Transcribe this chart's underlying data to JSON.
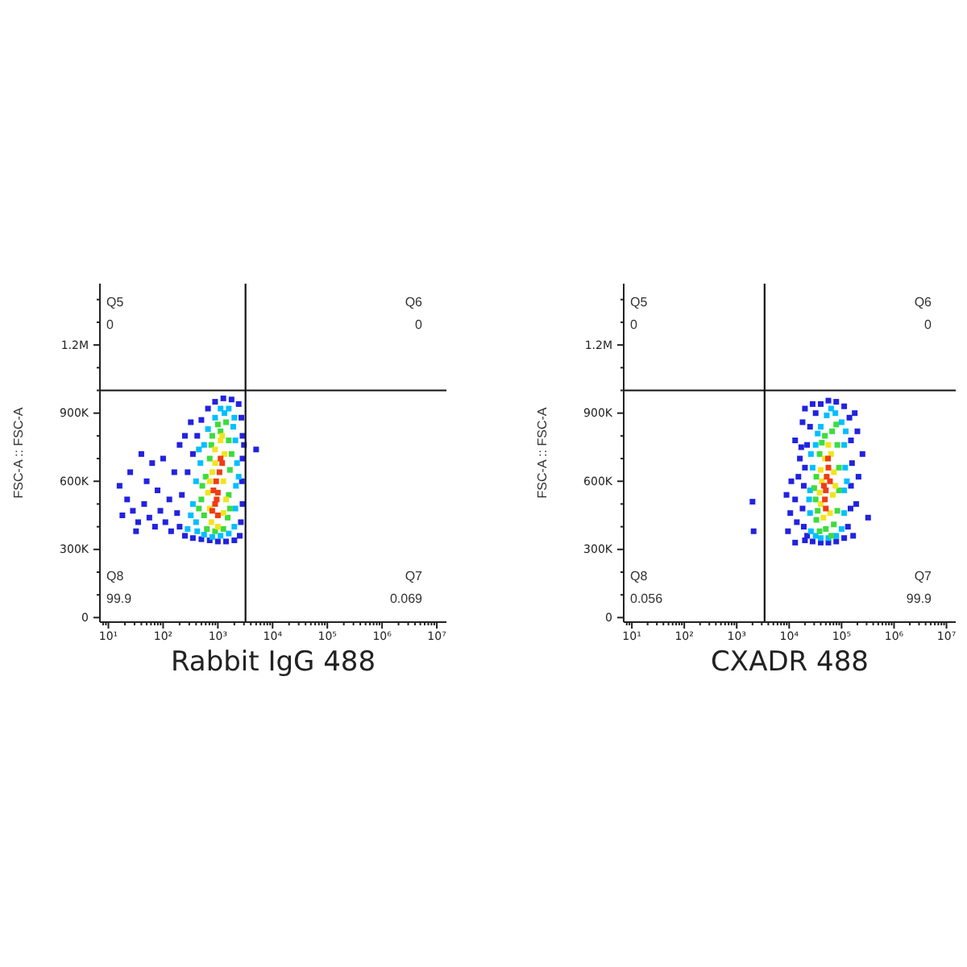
{
  "chart_data": [
    {
      "type": "scatter",
      "xlabel": "Rabbit IgG 488",
      "ylabel": "FSC-A :: FSC-A",
      "log": "x",
      "marker": "square",
      "xlim": [
        7,
        15000000
      ],
      "ylim": [
        -20000,
        1470000
      ],
      "xticks": [
        {
          "value": 8,
          "label": null
        },
        {
          "value": 9,
          "label": null
        },
        {
          "value": 10,
          "label": "10¹"
        },
        {
          "value": 20,
          "label": null
        },
        {
          "value": 30,
          "label": null
        },
        {
          "value": 40,
          "label": null
        },
        {
          "value": 50,
          "label": null
        },
        {
          "value": 60,
          "label": null
        },
        {
          "value": 70,
          "label": null
        },
        {
          "value": 80,
          "label": null
        },
        {
          "value": 90,
          "label": null
        },
        {
          "value": 100,
          "label": "10²"
        },
        {
          "value": 200,
          "label": null
        },
        {
          "value": 300,
          "label": null
        },
        {
          "value": 400,
          "label": null
        },
        {
          "value": 500,
          "label": null
        },
        {
          "value": 600,
          "label": null
        },
        {
          "value": 700,
          "label": null
        },
        {
          "value": 800,
          "label": null
        },
        {
          "value": 900,
          "label": null
        },
        {
          "value": 1000,
          "label": "10³"
        },
        {
          "value": 2000,
          "label": null
        },
        {
          "value": 3000,
          "label": null
        },
        {
          "value": 4000,
          "label": null
        },
        {
          "value": 5000,
          "label": null
        },
        {
          "value": 6000,
          "label": null
        },
        {
          "value": 7000,
          "label": null
        },
        {
          "value": 8000,
          "label": null
        },
        {
          "value": 9000,
          "label": null
        },
        {
          "value": 10000,
          "label": "10⁴"
        },
        {
          "value": 20000,
          "label": null
        },
        {
          "value": 30000,
          "label": null
        },
        {
          "value": 40000,
          "label": null
        },
        {
          "value": 50000,
          "label": null
        },
        {
          "value": 60000,
          "label": null
        },
        {
          "value": 70000,
          "label": null
        },
        {
          "value": 80000,
          "label": null
        },
        {
          "value": 90000,
          "label": null
        },
        {
          "value": 100000,
          "label": "10⁵"
        },
        {
          "value": 200000,
          "label": null
        },
        {
          "value": 300000,
          "label": null
        },
        {
          "value": 400000,
          "label": null
        },
        {
          "value": 500000,
          "label": null
        },
        {
          "value": 600000,
          "label": null
        },
        {
          "value": 700000,
          "label": null
        },
        {
          "value": 800000,
          "label": null
        },
        {
          "value": 900000,
          "label": null
        },
        {
          "value": 1000000,
          "label": "10⁶"
        },
        {
          "value": 2000000,
          "label": null
        },
        {
          "value": 3000000,
          "label": null
        },
        {
          "value": 4000000,
          "label": null
        },
        {
          "value": 5000000,
          "label": null
        },
        {
          "value": 6000000,
          "label": null
        },
        {
          "value": 7000000,
          "label": null
        },
        {
          "value": 8000000,
          "label": null
        },
        {
          "value": 9000000,
          "label": null
        },
        {
          "value": 10000000,
          "label": "10⁷"
        }
      ],
      "yticks": [
        {
          "value": 0,
          "label": "0"
        },
        {
          "value": 100000,
          "label": null
        },
        {
          "value": 200000,
          "label": null
        },
        {
          "value": 300000,
          "label": "300K"
        },
        {
          "value": 400000,
          "label": null
        },
        {
          "value": 500000,
          "label": null
        },
        {
          "value": 600000,
          "label": "600K"
        },
        {
          "value": 700000,
          "label": null
        },
        {
          "value": 800000,
          "label": null
        },
        {
          "value": 900000,
          "label": "900K"
        },
        {
          "value": 1000000,
          "label": null
        },
        {
          "value": 1100000,
          "label": null
        },
        {
          "value": 1200000,
          "label": "1.2M"
        },
        {
          "value": 1300000,
          "label": null
        },
        {
          "value": 1400000,
          "label": null
        }
      ],
      "series": [
        {
          "color": "#2222e0",
          "x": [
            250,
            200,
            180,
            220,
            280,
            350,
            420,
            500,
            660,
            890,
            1260,
            1780,
            2400,
            2690,
            2820,
            2820,
            2750,
            2820,
            2630,
            2510,
            2000,
            1410,
            1000,
            710,
            500,
            350,
            140,
            110,
            130,
            89,
            71,
            56,
            79,
            45,
            35,
            28,
            50,
            22,
            160,
            100,
            63,
            200,
            40,
            320,
            32,
            18,
            16,
            250,
            25,
            3000,
            5000
          ],
          "values": [
            360000,
            400000,
            460000,
            540000,
            640000,
            720000,
            800000,
            870000,
            920000,
            950000,
            965000,
            960000,
            940000,
            880000,
            800000,
            700000,
            600000,
            500000,
            420000,
            360000,
            340000,
            335000,
            335000,
            340000,
            345000,
            350000,
            380000,
            420000,
            520000,
            470000,
            400000,
            440000,
            560000,
            500000,
            420000,
            470000,
            600000,
            520000,
            640000,
            700000,
            680000,
            760000,
            720000,
            860000,
            380000,
            450000,
            580000,
            800000,
            640000,
            760000,
            740000
          ]
        },
        {
          "color": "#00bfff",
          "x": [
            400,
            350,
            400,
            480,
            560,
            660,
            890,
            1120,
            1580,
            2000,
            2090,
            2240,
            2140,
            2090,
            2000,
            1580,
            1120,
            790,
            560,
            420,
            320,
            450,
            1320,
            2400,
            1910,
            280
          ],
          "values": [
            420000,
            500000,
            600000,
            680000,
            760000,
            830000,
            880000,
            920000,
            920000,
            880000,
            780000,
            680000,
            580000,
            480000,
            400000,
            370000,
            360000,
            355000,
            365000,
            380000,
            450000,
            740000,
            900000,
            620000,
            840000,
            390000
          ]
        },
        {
          "color": "#3ddc3d",
          "x": [
            560,
            500,
            600,
            710,
            790,
            1000,
            1410,
            1580,
            1660,
            1580,
            1510,
            1260,
            890,
            630,
            520,
            760,
            1120,
            1780,
            1660,
            450
          ],
          "values": [
            450000,
            520000,
            620000,
            700000,
            800000,
            850000,
            860000,
            780000,
            650000,
            540000,
            440000,
            390000,
            380000,
            390000,
            580000,
            760000,
            820000,
            720000,
            480000,
            480000
          ]
        },
        {
          "color": "#f2e41e",
          "x": [
            710,
            760,
            1260,
            1320,
            890,
            1120,
            660,
            790,
            1410,
            1000,
            710,
            1260,
            890,
            1200
          ],
          "values": [
            480000,
            420000,
            600000,
            720000,
            740000,
            780000,
            550000,
            640000,
            520000,
            400000,
            600000,
            460000,
            680000,
            800000
          ]
        },
        {
          "color": "#f03c14",
          "x": [
            890,
            1000,
            930,
            1070,
            830,
            1120,
            790,
            1000,
            1200,
            950
          ],
          "values": [
            500000,
            550000,
            600000,
            640000,
            560000,
            700000,
            470000,
            450000,
            680000,
            520000
          ]
        }
      ],
      "ref_lines": [
        {
          "axis": "x",
          "value": 3200
        },
        {
          "axis": "y",
          "value": 1000000
        }
      ],
      "annotations": [
        "Q5",
        "0",
        "Q6",
        "0",
        "Q7",
        "0.069",
        "Q8",
        "99.9"
      ]
    },
    {
      "type": "scatter",
      "xlabel": "CXADR 488",
      "ylabel": "FSC-A :: FSC-A",
      "log": "x",
      "marker": "square",
      "xlim": [
        7,
        15000000
      ],
      "ylim": [
        -20000,
        1470000
      ],
      "xticks": [
        {
          "value": 8,
          "label": null
        },
        {
          "value": 9,
          "label": null
        },
        {
          "value": 10,
          "label": "10¹"
        },
        {
          "value": 20,
          "label": null
        },
        {
          "value": 30,
          "label": null
        },
        {
          "value": 40,
          "label": null
        },
        {
          "value": 50,
          "label": null
        },
        {
          "value": 60,
          "label": null
        },
        {
          "value": 70,
          "label": null
        },
        {
          "value": 80,
          "label": null
        },
        {
          "value": 90,
          "label": null
        },
        {
          "value": 100,
          "label": "10²"
        },
        {
          "value": 200,
          "label": null
        },
        {
          "value": 300,
          "label": null
        },
        {
          "value": 400,
          "label": null
        },
        {
          "value": 500,
          "label": null
        },
        {
          "value": 600,
          "label": null
        },
        {
          "value": 700,
          "label": null
        },
        {
          "value": 800,
          "label": null
        },
        {
          "value": 900,
          "label": null
        },
        {
          "value": 1000,
          "label": "10³"
        },
        {
          "value": 2000,
          "label": null
        },
        {
          "value": 3000,
          "label": null
        },
        {
          "value": 4000,
          "label": null
        },
        {
          "value": 5000,
          "label": null
        },
        {
          "value": 6000,
          "label": null
        },
        {
          "value": 7000,
          "label": null
        },
        {
          "value": 8000,
          "label": null
        },
        {
          "value": 9000,
          "label": null
        },
        {
          "value": 10000,
          "label": "10⁴"
        },
        {
          "value": 20000,
          "label": null
        },
        {
          "value": 30000,
          "label": null
        },
        {
          "value": 40000,
          "label": null
        },
        {
          "value": 50000,
          "label": null
        },
        {
          "value": 60000,
          "label": null
        },
        {
          "value": 70000,
          "label": null
        },
        {
          "value": 80000,
          "label": null
        },
        {
          "value": 90000,
          "label": null
        },
        {
          "value": 100000,
          "label": "10⁵"
        },
        {
          "value": 200000,
          "label": null
        },
        {
          "value": 300000,
          "label": null
        },
        {
          "value": 400000,
          "label": null
        },
        {
          "value": 500000,
          "label": null
        },
        {
          "value": 600000,
          "label": null
        },
        {
          "value": 700000,
          "label": null
        },
        {
          "value": 800000,
          "label": null
        },
        {
          "value": 900000,
          "label": null
        },
        {
          "value": 1000000,
          "label": "10⁶"
        },
        {
          "value": 2000000,
          "label": null
        },
        {
          "value": 3000000,
          "label": null
        },
        {
          "value": 4000000,
          "label": null
        },
        {
          "value": 5000000,
          "label": null
        },
        {
          "value": 6000000,
          "label": null
        },
        {
          "value": 7000000,
          "label": null
        },
        {
          "value": 8000000,
          "label": null
        },
        {
          "value": 9000000,
          "label": null
        },
        {
          "value": 10000000,
          "label": "10⁷"
        }
      ],
      "yticks": [
        {
          "value": 0,
          "label": "0"
        },
        {
          "value": 100000,
          "label": null
        },
        {
          "value": 200000,
          "label": null
        },
        {
          "value": 300000,
          "label": "300K"
        },
        {
          "value": 400000,
          "label": null
        },
        {
          "value": 500000,
          "label": null
        },
        {
          "value": 600000,
          "label": "600K"
        },
        {
          "value": 700000,
          "label": null
        },
        {
          "value": 800000,
          "label": null
        },
        {
          "value": 900000,
          "label": "900K"
        },
        {
          "value": 1000000,
          "label": null
        },
        {
          "value": 1100000,
          "label": null
        },
        {
          "value": 1200000,
          "label": "1.2M"
        },
        {
          "value": 1300000,
          "label": null
        },
        {
          "value": 1400000,
          "label": null
        }
      ],
      "series": [
        {
          "color": "#2222e0",
          "x": [
            20000,
            19000,
            18000,
            19000,
            20000,
            22000,
            25000,
            32000,
            40000,
            56000,
            79000,
            112000,
            141000,
            151000,
            158000,
            151000,
            148000,
            132000,
            112000,
            79000,
            56000,
            40000,
            28000,
            22000,
            14000,
            13000,
            15000,
            16000,
            13000,
            11000,
            10500,
            9500,
            200000,
            210000,
            190000,
            320000,
            18000,
            28000,
            178000,
            13000,
            250000,
            17000,
            166000,
            8900,
            20000,
            2000,
            2100
          ],
          "values": [
            340000,
            400000,
            480000,
            580000,
            660000,
            760000,
            840000,
            900000,
            940000,
            955000,
            950000,
            930000,
            880000,
            780000,
            680000,
            580000,
            480000,
            400000,
            350000,
            335000,
            330000,
            330000,
            335000,
            360000,
            420000,
            520000,
            620000,
            700000,
            780000,
            600000,
            460000,
            380000,
            820000,
            620000,
            500000,
            440000,
            860000,
            940000,
            900000,
            330000,
            720000,
            750000,
            360000,
            540000,
            920000,
            510000,
            380000
          ]
        },
        {
          "color": "#00bfff",
          "x": [
            26000,
            25000,
            25000,
            28000,
            32000,
            40000,
            52000,
            76000,
            100000,
            112000,
            117000,
            112000,
            112000,
            100000,
            79000,
            56000,
            40000,
            32000,
            26000,
            35000,
            63000,
            120000,
            126000,
            24000
          ],
          "values": [
            380000,
            460000,
            560000,
            660000,
            760000,
            840000,
            890000,
            900000,
            860000,
            760000,
            660000,
            560000,
            460000,
            390000,
            360000,
            350000,
            350000,
            360000,
            720000,
            810000,
            920000,
            820000,
            600000,
            520000
          ]
        },
        {
          "color": "#3ddc3d",
          "x": [
            33000,
            32000,
            33000,
            38000,
            48000,
            66000,
            83000,
            89000,
            89000,
            83000,
            71000,
            50000,
            38000,
            30000,
            42000,
            79000,
            63000,
            35000
          ],
          "values": [
            430000,
            520000,
            620000,
            720000,
            800000,
            820000,
            760000,
            660000,
            560000,
            470000,
            410000,
            390000,
            380000,
            570000,
            770000,
            850000,
            360000,
            470000
          ]
        },
        {
          "color": "#f2e41e",
          "x": [
            40000,
            42000,
            48000,
            63000,
            71000,
            68000,
            60000,
            45000,
            40000,
            56000,
            76000,
            38000
          ],
          "values": [
            500000,
            600000,
            700000,
            720000,
            640000,
            540000,
            460000,
            440000,
            650000,
            760000,
            580000,
            550000
          ]
        },
        {
          "color": "#f03c14",
          "x": [
            50000,
            52000,
            56000,
            48000,
            60000,
            46000,
            55000,
            50000
          ],
          "values": [
            560000,
            620000,
            660000,
            520000,
            600000,
            580000,
            700000,
            480000
          ]
        }
      ],
      "ref_lines": [
        {
          "axis": "x",
          "value": 3400
        },
        {
          "axis": "y",
          "value": 1000000
        }
      ],
      "annotations": [
        "Q5",
        "0",
        "Q6",
        "0",
        "Q7",
        "99.9",
        "Q8",
        "0.056"
      ]
    }
  ]
}
